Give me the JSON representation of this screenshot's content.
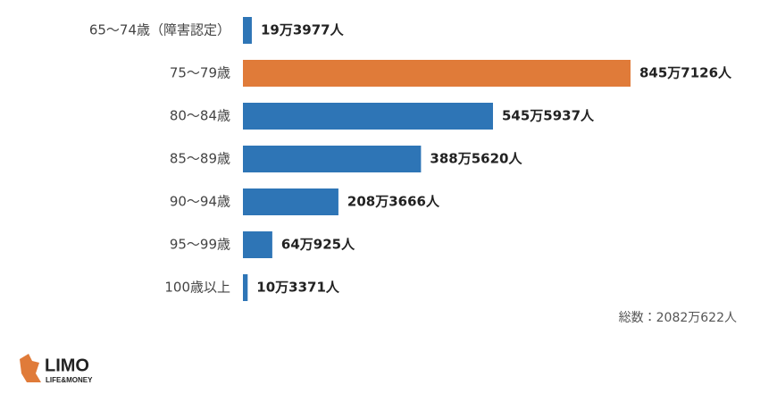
{
  "chart_data": {
    "type": "hbar",
    "categories": [
      "65〜74歳（障害認定）",
      "75〜79歳",
      "80〜84歳",
      "85〜89歳",
      "90〜94歳",
      "95〜99歳",
      "100歳以上"
    ],
    "values": [
      193977,
      8457126,
      5455937,
      3885620,
      2083666,
      640925,
      103371
    ],
    "value_labels": [
      "19万3977人",
      "845万7126人",
      "545万5937人",
      "388万5620人",
      "208万3666人",
      "64万925人",
      "10万3371人"
    ],
    "colors": [
      "#2e75b6",
      "#e07b39",
      "#2e75b6",
      "#2e75b6",
      "#2e75b6",
      "#2e75b6",
      "#2e75b6"
    ],
    "annotation": "総数：2082万622人"
  },
  "logo": {
    "title": "LIMO",
    "subtitle": "LIFE&MONEY"
  }
}
